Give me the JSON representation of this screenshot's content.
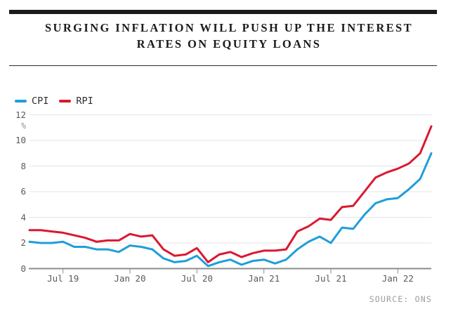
{
  "header": {
    "title_line1": "SURGING INFLATION WILL PUSH UP THE INTEREST",
    "title_line2": "RATES ON EQUITY LOANS"
  },
  "footer": {
    "source_label": "SOURCE: ONS"
  },
  "colors": {
    "cpi_blue": "#1F9ED9",
    "rpi_red": "#DB1830",
    "grid_gray": "#E4E4E4",
    "axis_gray": "#8C8C8C",
    "headline_black": "#1B1B1B"
  },
  "chart_data": {
    "type": "line",
    "title": "SURGING INFLATION WILL PUSH UP THE INTEREST RATES ON EQUITY LOANS",
    "xlabel": "",
    "ylabel": "%",
    "unit_label": "%",
    "ylim": [
      0,
      12
    ],
    "ytick_values": [
      0,
      2,
      4,
      6,
      8,
      10,
      12
    ],
    "grid": "horizontal",
    "legend_position": "top-left",
    "source": "SOURCE: ONS",
    "x": [
      "Apr 19",
      "May 19",
      "Jun 19",
      "Jul 19",
      "Aug 19",
      "Sep 19",
      "Oct 19",
      "Nov 19",
      "Dec 19",
      "Jan 20",
      "Feb 20",
      "Mar 20",
      "Apr 20",
      "May 20",
      "Jun 20",
      "Jul 20",
      "Aug 20",
      "Sep 20",
      "Oct 20",
      "Nov 20",
      "Dec 20",
      "Jan 21",
      "Feb 21",
      "Mar 21",
      "Apr 21",
      "May 21",
      "Jun 21",
      "Jul 21",
      "Aug 21",
      "Sep 21",
      "Oct 21",
      "Nov 21",
      "Dec 21",
      "Jan 22",
      "Feb 22",
      "Mar 22",
      "Apr 22"
    ],
    "xtick_labels": [
      "Jul 19",
      "Jan 20",
      "Jul 20",
      "Jan 21",
      "Jul 21",
      "Jan 22"
    ],
    "series": [
      {
        "name": "CPI",
        "color": "#1F9ED9",
        "values": [
          2.1,
          2.0,
          2.0,
          2.1,
          1.7,
          1.7,
          1.5,
          1.5,
          1.3,
          1.8,
          1.7,
          1.5,
          0.8,
          0.5,
          0.6,
          1.0,
          0.2,
          0.5,
          0.7,
          0.3,
          0.6,
          0.7,
          0.4,
          0.7,
          1.5,
          2.1,
          2.5,
          2.0,
          3.2,
          3.1,
          4.2,
          5.1,
          5.4,
          5.5,
          6.2,
          7.0,
          9.0
        ]
      },
      {
        "name": "RPI",
        "color": "#DB1830",
        "values": [
          3.0,
          3.0,
          2.9,
          2.8,
          2.6,
          2.4,
          2.1,
          2.2,
          2.2,
          2.7,
          2.5,
          2.6,
          1.5,
          1.0,
          1.1,
          1.6,
          0.5,
          1.1,
          1.3,
          0.9,
          1.2,
          1.4,
          1.4,
          1.5,
          2.9,
          3.3,
          3.9,
          3.8,
          4.8,
          4.9,
          6.0,
          7.1,
          7.5,
          7.8,
          8.2,
          9.0,
          11.1
        ]
      }
    ]
  }
}
